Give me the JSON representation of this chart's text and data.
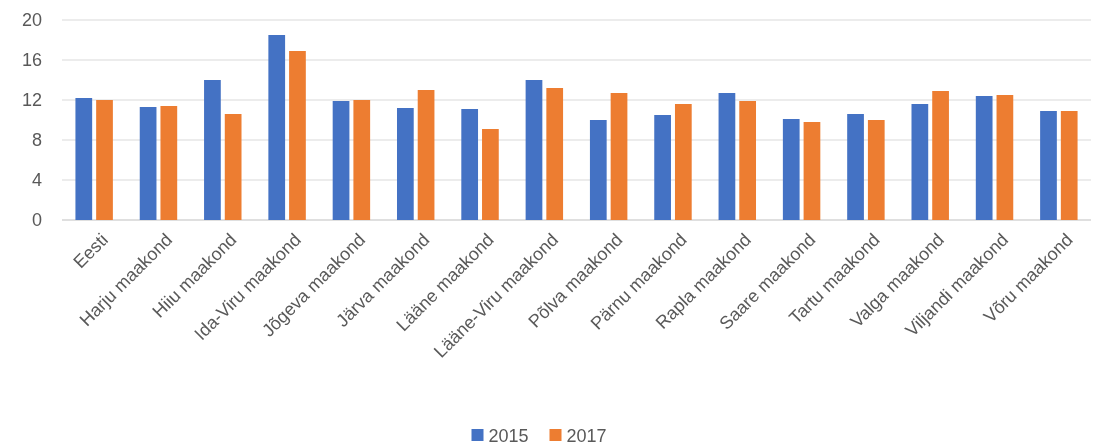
{
  "chart_data": {
    "type": "bar",
    "categories": [
      "Eesti",
      "Harju maakond",
      "Hiiu maakond",
      "Ida-Viru maakond",
      "Jõgeva maakond",
      "Järva maakond",
      "Lääne maakond",
      "Lääne-Viru maakond",
      "Põlva maakond",
      "Pärnu maakond",
      "Rapla maakond",
      "Saare maakond",
      "Tartu maakond",
      "Valga maakond",
      "Viljandi maakond",
      "Võru maakond"
    ],
    "series": [
      {
        "name": "2015",
        "color": "#4472c4",
        "values": [
          12.2,
          11.3,
          14.0,
          18.5,
          11.9,
          11.2,
          11.1,
          14.0,
          10.0,
          10.5,
          12.7,
          10.1,
          10.6,
          11.6,
          12.4,
          10.9
        ]
      },
      {
        "name": "2017",
        "color": "#ed7d31",
        "values": [
          12.0,
          11.4,
          10.6,
          16.9,
          12.0,
          13.0,
          9.1,
          13.2,
          12.7,
          11.6,
          11.9,
          9.8,
          10.0,
          12.9,
          12.5,
          10.9
        ]
      }
    ],
    "ylim": [
      0,
      20
    ],
    "yticks": [
      0,
      4,
      8,
      12,
      16,
      20
    ],
    "grid": "y",
    "legend": "bottom"
  }
}
